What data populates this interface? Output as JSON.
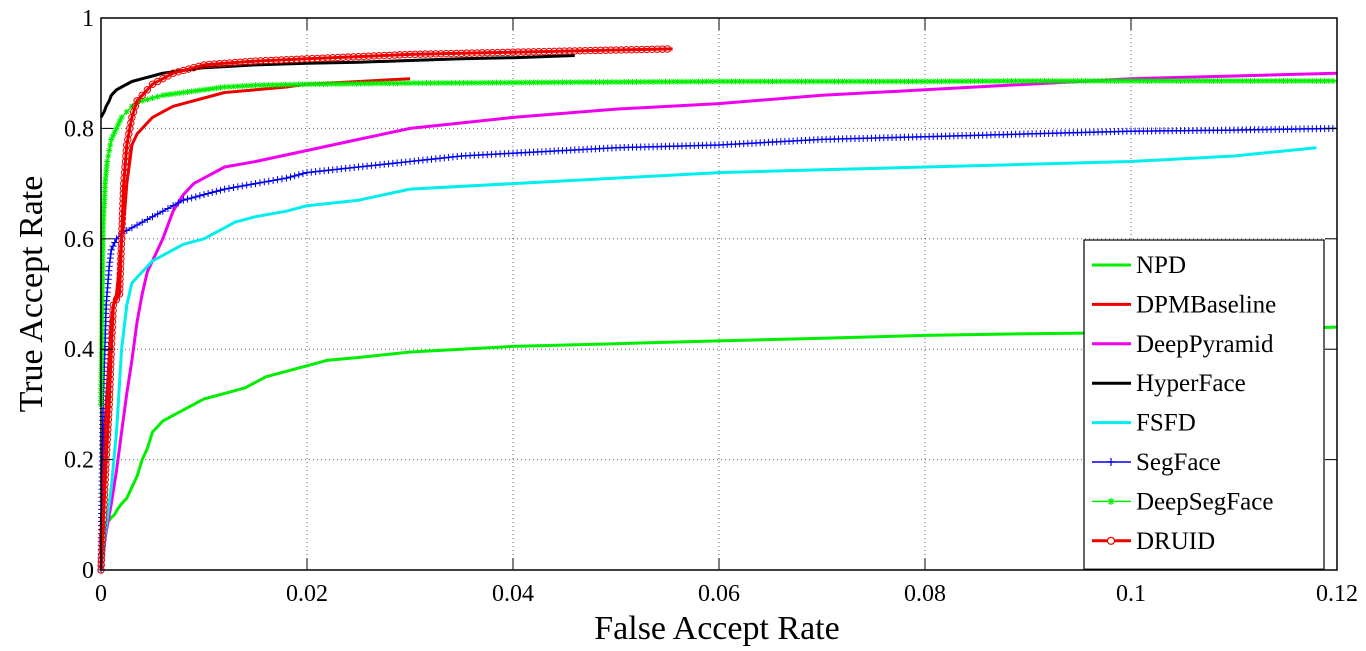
{
  "chart_data": {
    "type": "line",
    "title": "",
    "xlabel": "False Accept Rate",
    "ylabel": "True Accept Rate",
    "xlim": [
      0,
      0.12
    ],
    "ylim": [
      0,
      1
    ],
    "xticks": [
      0,
      0.02,
      0.04,
      0.06,
      0.08,
      0.1,
      0.12
    ],
    "xtick_labels": [
      "0",
      "0.02",
      "0.04",
      "0.06",
      "0.08",
      "0.1",
      "0.12"
    ],
    "yticks": [
      0,
      0.2,
      0.4,
      0.6,
      0.8,
      1
    ],
    "ytick_labels": [
      "0",
      "0.2",
      "0.4",
      "0.6",
      "0.8",
      "1"
    ],
    "grid": true,
    "legend_position": "bottom-right",
    "series": [
      {
        "name": "NPD",
        "color": "#00ee00",
        "marker": "none",
        "width": 3,
        "x": [
          0,
          0.0003,
          0.0005,
          0.0008,
          0.001,
          0.0013,
          0.0016,
          0.002,
          0.0025,
          0.003,
          0.0035,
          0.004,
          0.0045,
          0.005,
          0.0055,
          0.006,
          0.007,
          0.008,
          0.009,
          0.01,
          0.012,
          0.014,
          0.015,
          0.016,
          0.018,
          0.02,
          0.022,
          0.025,
          0.03,
          0.035,
          0.04,
          0.05,
          0.06,
          0.07,
          0.08,
          0.09,
          0.1,
          0.11,
          0.12
        ],
        "y": [
          0,
          0.08,
          0.085,
          0.09,
          0.095,
          0.1,
          0.11,
          0.12,
          0.13,
          0.15,
          0.17,
          0.2,
          0.22,
          0.25,
          0.26,
          0.27,
          0.28,
          0.29,
          0.3,
          0.31,
          0.32,
          0.33,
          0.34,
          0.35,
          0.36,
          0.37,
          0.38,
          0.385,
          0.395,
          0.4,
          0.405,
          0.41,
          0.415,
          0.42,
          0.425,
          0.428,
          0.43,
          0.435,
          0.44
        ]
      },
      {
        "name": "DPMBaseline",
        "color": "#ee0000",
        "marker": "none",
        "width": 3,
        "x": [
          0,
          0.0002,
          0.0005,
          0.0008,
          0.001,
          0.0012,
          0.0015,
          0.0018,
          0.002,
          0.0023,
          0.0025,
          0.0028,
          0.003,
          0.0035,
          0.004,
          0.0045,
          0.005,
          0.006,
          0.007,
          0.008,
          0.01,
          0.012,
          0.015,
          0.018,
          0.02,
          0.025,
          0.03
        ],
        "y": [
          0,
          0.2,
          0.3,
          0.38,
          0.45,
          0.48,
          0.5,
          0.55,
          0.6,
          0.65,
          0.7,
          0.74,
          0.77,
          0.79,
          0.8,
          0.81,
          0.82,
          0.83,
          0.84,
          0.845,
          0.855,
          0.865,
          0.87,
          0.875,
          0.88,
          0.885,
          0.89
        ]
      },
      {
        "name": "DeepPyramid",
        "color": "#ee00ee",
        "marker": "none",
        "width": 3,
        "x": [
          0,
          0.0005,
          0.001,
          0.0015,
          0.002,
          0.0025,
          0.003,
          0.0035,
          0.004,
          0.0045,
          0.005,
          0.006,
          0.007,
          0.008,
          0.009,
          0.01,
          0.012,
          0.015,
          0.02,
          0.025,
          0.03,
          0.04,
          0.05,
          0.06,
          0.07,
          0.08,
          0.09,
          0.1,
          0.11,
          0.12
        ],
        "y": [
          0,
          0.07,
          0.12,
          0.18,
          0.25,
          0.32,
          0.38,
          0.45,
          0.5,
          0.54,
          0.56,
          0.6,
          0.65,
          0.68,
          0.7,
          0.71,
          0.73,
          0.74,
          0.76,
          0.78,
          0.8,
          0.82,
          0.835,
          0.845,
          0.86,
          0.87,
          0.88,
          0.89,
          0.895,
          0.9
        ]
      },
      {
        "name": "HyperFace",
        "color": "#000000",
        "marker": "none",
        "width": 3,
        "x": [
          0,
          0.0003,
          0.0005,
          0.0008,
          0.001,
          0.0015,
          0.002,
          0.003,
          0.004,
          0.005,
          0.006,
          0.008,
          0.01,
          0.012,
          0.015,
          0.02,
          0.025,
          0.03,
          0.035,
          0.04,
          0.046
        ],
        "y": [
          0.82,
          0.83,
          0.84,
          0.85,
          0.86,
          0.87,
          0.875,
          0.885,
          0.89,
          0.895,
          0.9,
          0.905,
          0.91,
          0.912,
          0.915,
          0.918,
          0.92,
          0.923,
          0.926,
          0.928,
          0.932
        ]
      },
      {
        "name": "FSFD",
        "color": "#00eeee",
        "marker": "none",
        "width": 3,
        "x": [
          0,
          0.0005,
          0.001,
          0.0015,
          0.002,
          0.0025,
          0.003,
          0.004,
          0.005,
          0.006,
          0.007,
          0.008,
          0.01,
          0.012,
          0.013,
          0.015,
          0.018,
          0.02,
          0.025,
          0.03,
          0.04,
          0.05,
          0.06,
          0.07,
          0.08,
          0.09,
          0.1,
          0.11,
          0.118
        ],
        "y": [
          0,
          0.08,
          0.15,
          0.25,
          0.4,
          0.48,
          0.52,
          0.54,
          0.56,
          0.57,
          0.58,
          0.59,
          0.6,
          0.62,
          0.63,
          0.64,
          0.65,
          0.66,
          0.67,
          0.69,
          0.7,
          0.71,
          0.72,
          0.725,
          0.73,
          0.735,
          0.74,
          0.75,
          0.765
        ]
      },
      {
        "name": "SegFace",
        "color": "#0000ee",
        "marker": "plus",
        "width": 1.5,
        "x": [
          0,
          0.0002,
          0.0005,
          0.0008,
          0.001,
          0.0015,
          0.002,
          0.003,
          0.004,
          0.005,
          0.006,
          0.007,
          0.008,
          0.01,
          0.012,
          0.015,
          0.018,
          0.02,
          0.025,
          0.03,
          0.035,
          0.04,
          0.05,
          0.06,
          0.07,
          0.08,
          0.09,
          0.1,
          0.11,
          0.12
        ],
        "y": [
          0,
          0.3,
          0.48,
          0.55,
          0.58,
          0.6,
          0.61,
          0.62,
          0.63,
          0.64,
          0.65,
          0.66,
          0.67,
          0.68,
          0.69,
          0.7,
          0.71,
          0.72,
          0.73,
          0.74,
          0.75,
          0.755,
          0.765,
          0.77,
          0.78,
          0.785,
          0.79,
          0.795,
          0.797,
          0.8
        ]
      },
      {
        "name": "DeepSegFace",
        "color": "#00ee00",
        "marker": "star",
        "width": 1.5,
        "x": [
          0,
          0.0002,
          0.0004,
          0.0006,
          0.0008,
          0.001,
          0.0015,
          0.002,
          0.0025,
          0.003,
          0.004,
          0.005,
          0.006,
          0.008,
          0.01,
          0.012,
          0.015,
          0.02,
          0.03,
          0.04,
          0.05,
          0.06,
          0.07,
          0.08,
          0.09,
          0.1,
          0.11,
          0.12
        ],
        "y": [
          0.3,
          0.62,
          0.7,
          0.74,
          0.76,
          0.78,
          0.8,
          0.82,
          0.83,
          0.84,
          0.85,
          0.855,
          0.86,
          0.865,
          0.87,
          0.875,
          0.878,
          0.88,
          0.882,
          0.883,
          0.884,
          0.885,
          0.885,
          0.885,
          0.886,
          0.886,
          0.886,
          0.886
        ]
      },
      {
        "name": "DRUID",
        "color": "#ee0000",
        "marker": "circle",
        "width": 3,
        "x": [
          0,
          0.0005,
          0.0008,
          0.001,
          0.0012,
          0.0015,
          0.0018,
          0.002,
          0.0022,
          0.0025,
          0.0028,
          0.003,
          0.0035,
          0.004,
          0.0045,
          0.005,
          0.006,
          0.007,
          0.008,
          0.009,
          0.01,
          0.012,
          0.015,
          0.02,
          0.025,
          0.03,
          0.035,
          0.04,
          0.045,
          0.05,
          0.0555
        ],
        "y": [
          0,
          0.2,
          0.3,
          0.4,
          0.48,
          0.49,
          0.5,
          0.6,
          0.7,
          0.77,
          0.8,
          0.82,
          0.85,
          0.86,
          0.87,
          0.88,
          0.89,
          0.9,
          0.905,
          0.91,
          0.915,
          0.918,
          0.922,
          0.926,
          0.93,
          0.934,
          0.936,
          0.938,
          0.94,
          0.942,
          0.944
        ]
      }
    ]
  }
}
